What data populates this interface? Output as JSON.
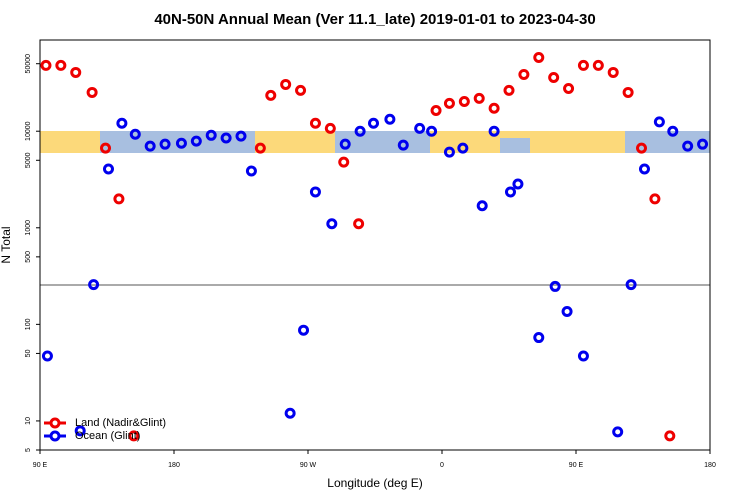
{
  "chart_data": {
    "type": "scatter",
    "title": "40N-50N Annual Mean (Ver 11.1_late)   2019-01-01 to 2023-04-30",
    "x_label": "Longitude (deg E)",
    "y_label": "N Total",
    "log_y": true,
    "legend": "lower left",
    "xlim": [
      90,
      540
    ],
    "ylim": [
      5,
      88000
    ],
    "xticks": [
      {
        "value": 90,
        "label": "90 E"
      },
      {
        "value": 180,
        "label": "180"
      },
      {
        "value": 270,
        "label": "90 W"
      },
      {
        "value": 360,
        "label": "0"
      },
      {
        "value": 450,
        "label": "90 E"
      },
      {
        "value": 540,
        "label": "180"
      }
    ],
    "yticks": [
      5,
      10,
      50,
      100,
      500,
      1000,
      5000,
      10000,
      50000
    ],
    "series": [
      {
        "name": "Land (Nadir&Glint)",
        "color": "#ee0000",
        "x": [
          94,
          104,
          114,
          125,
          134,
          143,
          153,
          238,
          245,
          255,
          265,
          275,
          285,
          294,
          304,
          356,
          365,
          375,
          385,
          395,
          405,
          415,
          425,
          435,
          445,
          455,
          465,
          475,
          485,
          494,
          503,
          513
        ],
        "values": [
          48000,
          48000,
          40600,
          25200,
          6680,
          1990,
          7,
          6680,
          23500,
          30500,
          26500,
          12100,
          10700,
          4790,
          1100,
          16400,
          19400,
          20300,
          21900,
          17300,
          26500,
          38700,
          58000,
          36000,
          27700,
          48000,
          48000,
          40600,
          25200,
          6680,
          1990,
          7
        ]
      },
      {
        "name": "Ocean (Glint)",
        "color": "#0000ee",
        "x": [
          95,
          117,
          126,
          136,
          145,
          154,
          164,
          174,
          185,
          195,
          205,
          215,
          225,
          232,
          258,
          267,
          275,
          286,
          295,
          305,
          314,
          325,
          334,
          345,
          353,
          365,
          374,
          387,
          395,
          406,
          411,
          425,
          436,
          444,
          455,
          478,
          487,
          496,
          506,
          515,
          525,
          535
        ],
        "values": [
          47,
          7.9,
          258,
          4060,
          12100,
          9310,
          7000,
          7340,
          7500,
          7900,
          9070,
          8500,
          8900,
          3870,
          12,
          87,
          2350,
          1100,
          7340,
          10000,
          12100,
          13300,
          7170,
          10700,
          10000,
          6080,
          6680,
          1690,
          10000,
          2350,
          2840,
          73,
          247,
          136,
          47,
          7.7,
          258,
          4060,
          12500,
          10000,
          7000,
          7340
        ]
      }
    ]
  }
}
